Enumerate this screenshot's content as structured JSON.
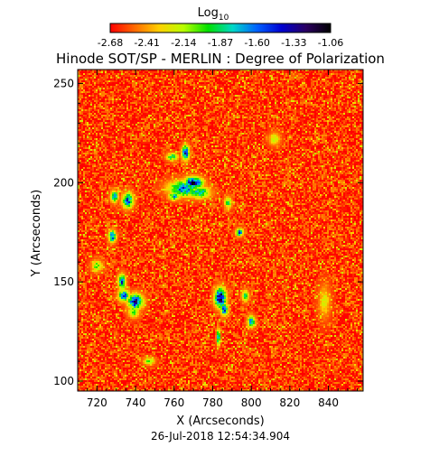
{
  "chart_data": {
    "type": "heatmap",
    "title": "Hinode SOT/SP - MERLIN : Degree of Polarization",
    "xlabel": "X (Arcseconds)",
    "ylabel": "Y (Arcseconds)",
    "timestamp": "26-Jul-2018 12:54:34.904",
    "colorbar": {
      "label": "Log",
      "label_subscript": "10",
      "tick_labels": [
        "-2.68",
        "-2.41",
        "-2.14",
        "-1.87",
        "-1.60",
        "-1.33",
        "-1.06"
      ],
      "range": [
        -2.68,
        -1.06
      ],
      "colors": [
        "#ff0000",
        "#ff6a00",
        "#ffd000",
        "#b8ff00",
        "#00e000",
        "#00d8c8",
        "#0060ff",
        "#0000d0",
        "#2a0060",
        "#000000"
      ]
    },
    "xlim": [
      710,
      858
    ],
    "ylim": [
      95,
      257
    ],
    "xticks": [
      720,
      740,
      760,
      780,
      800,
      820,
      840
    ],
    "yticks": [
      100,
      150,
      200,
      250
    ],
    "background_level": -2.6,
    "features": [
      {
        "x": 765,
        "y": 197,
        "rx": 8,
        "ry": 4,
        "level": -1.5
      },
      {
        "x": 770,
        "y": 200,
        "rx": 5,
        "ry": 3,
        "level": -1.2
      },
      {
        "x": 773,
        "y": 195,
        "rx": 6,
        "ry": 3,
        "level": -1.7
      },
      {
        "x": 766,
        "y": 215,
        "rx": 2,
        "ry": 4,
        "level": -1.4
      },
      {
        "x": 759,
        "y": 213,
        "rx": 3,
        "ry": 2,
        "level": -1.8
      },
      {
        "x": 760,
        "y": 193,
        "rx": 3,
        "ry": 2,
        "level": -1.7
      },
      {
        "x": 729,
        "y": 193,
        "rx": 2,
        "ry": 3,
        "level": -1.6
      },
      {
        "x": 736,
        "y": 191,
        "rx": 3,
        "ry": 4,
        "level": -1.5
      },
      {
        "x": 728,
        "y": 173,
        "rx": 2,
        "ry": 3,
        "level": -1.4
      },
      {
        "x": 740,
        "y": 140,
        "rx": 4,
        "ry": 4,
        "level": -1.3
      },
      {
        "x": 734,
        "y": 143,
        "rx": 3,
        "ry": 3,
        "level": -1.5
      },
      {
        "x": 733,
        "y": 150,
        "rx": 2,
        "ry": 4,
        "level": -1.5
      },
      {
        "x": 739,
        "y": 135,
        "rx": 3,
        "ry": 3,
        "level": -1.9
      },
      {
        "x": 784,
        "y": 142,
        "rx": 3,
        "ry": 5,
        "level": -1.1
      },
      {
        "x": 786,
        "y": 136,
        "rx": 2,
        "ry": 3,
        "level": -1.4
      },
      {
        "x": 783,
        "y": 122,
        "rx": 1,
        "ry": 4,
        "level": -1.5
      },
      {
        "x": 794,
        "y": 175,
        "rx": 2,
        "ry": 2,
        "level": -1.5
      },
      {
        "x": 800,
        "y": 130,
        "rx": 2,
        "ry": 3,
        "level": -1.6
      },
      {
        "x": 797,
        "y": 143,
        "rx": 2,
        "ry": 3,
        "level": -1.9
      },
      {
        "x": 788,
        "y": 190,
        "rx": 2,
        "ry": 3,
        "level": -1.9
      },
      {
        "x": 747,
        "y": 110,
        "rx": 3,
        "ry": 2,
        "level": -2.0
      },
      {
        "x": 720,
        "y": 158,
        "rx": 3,
        "ry": 3,
        "level": -2.0
      },
      {
        "x": 838,
        "y": 140,
        "rx": 3,
        "ry": 8,
        "level": -2.2
      },
      {
        "x": 812,
        "y": 222,
        "rx": 3,
        "ry": 3,
        "level": -2.1
      }
    ]
  }
}
